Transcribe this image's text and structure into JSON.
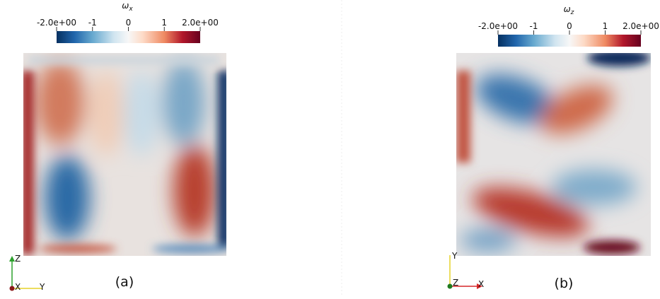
{
  "panels": [
    {
      "title": "ω",
      "title_sub": "x",
      "colorbar": {
        "lim": [
          -2,
          2
        ],
        "ticks": [
          {
            "value": -2,
            "label": "-2.0e+00"
          },
          -1,
          0,
          1,
          {
            "value": 2,
            "label": "2.0e+00"
          }
        ]
      },
      "axes": {
        "up": "Z",
        "left": "X",
        "right": "Y"
      },
      "caption": "(a)"
    },
    {
      "title": "ω",
      "title_sub": "z",
      "colorbar": {
        "lim": [
          -2,
          2
        ],
        "ticks": [
          {
            "value": -2,
            "label": "-2.0e+00"
          },
          -1,
          0,
          1,
          {
            "value": 2,
            "label": "2.0e+00"
          }
        ]
      },
      "axes": {
        "up": "Y",
        "left": "Z",
        "right": "X"
      },
      "caption": "(b)"
    }
  ]
}
